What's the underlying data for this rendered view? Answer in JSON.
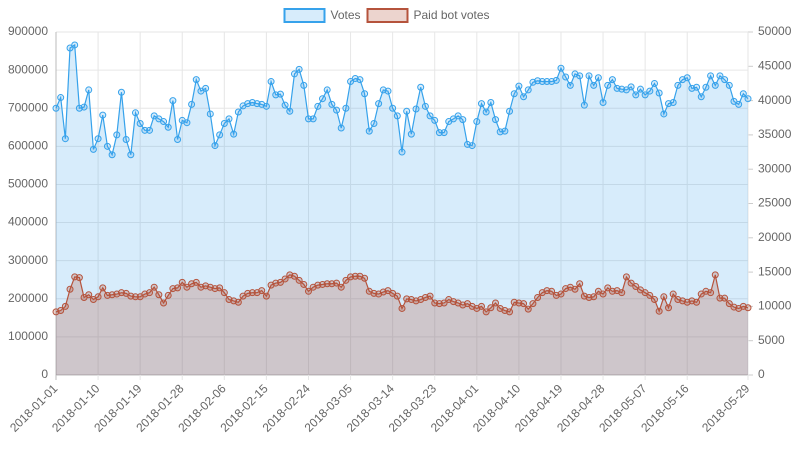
{
  "chart_data": {
    "type": "line",
    "categories": [
      "2018-01-01",
      null,
      null,
      null,
      null,
      null,
      null,
      null,
      null,
      "2018-01-10",
      null,
      null,
      null,
      null,
      null,
      null,
      null,
      null,
      "2018-01-19",
      null,
      null,
      null,
      null,
      null,
      null,
      null,
      null,
      "2018-01-28",
      null,
      null,
      null,
      null,
      null,
      null,
      null,
      null,
      "2018-02-06",
      null,
      null,
      null,
      null,
      null,
      null,
      null,
      null,
      "2018-02-15",
      null,
      null,
      null,
      null,
      null,
      null,
      null,
      null,
      "2018-02-24",
      null,
      null,
      null,
      null,
      null,
      null,
      null,
      null,
      "2018-03-05",
      null,
      null,
      null,
      null,
      null,
      null,
      null,
      null,
      "2018-03-14",
      null,
      null,
      null,
      null,
      null,
      null,
      null,
      null,
      "2018-03-23",
      null,
      null,
      null,
      null,
      null,
      null,
      null,
      null,
      "2018-04-01",
      null,
      null,
      null,
      null,
      null,
      null,
      null,
      null,
      "2018-04-10",
      null,
      null,
      null,
      null,
      null,
      null,
      null,
      null,
      "2018-04-19",
      null,
      null,
      null,
      null,
      null,
      null,
      null,
      null,
      "2018-04-28",
      null,
      null,
      null,
      null,
      null,
      null,
      null,
      null,
      "2018-05-07",
      null,
      null,
      null,
      null,
      null,
      null,
      null,
      null,
      "2018-05-16",
      null,
      null,
      null,
      null,
      null,
      null,
      null,
      null,
      null,
      null,
      null,
      null,
      "2018-05-29"
    ],
    "series": [
      {
        "name": "Votes",
        "color": "#36a2eb",
        "fill": "rgba(54,162,235,0.2)",
        "values": [
          700000,
          728000,
          620000,
          858000,
          866000,
          700000,
          703000,
          748000,
          592000,
          620000,
          682000,
          600000,
          578000,
          630000,
          742000,
          618000,
          578000,
          688000,
          660000,
          642000,
          642000,
          680000,
          672000,
          665000,
          650000,
          720000,
          618000,
          668000,
          662000,
          710000,
          775000,
          745000,
          752000,
          685000,
          602000,
          630000,
          660000,
          672000,
          632000,
          690000,
          706000,
          712000,
          715000,
          712000,
          710000,
          705000,
          770000,
          735000,
          737000,
          708000,
          692000,
          790000,
          802000,
          760000,
          672000,
          672000,
          705000,
          725000,
          748000,
          710000,
          695000,
          648000,
          700000,
          770000,
          778000,
          775000,
          738000,
          640000,
          660000,
          712000,
          748000,
          745000,
          700000,
          680000,
          585000,
          692000,
          632000,
          698000,
          755000,
          705000,
          680000,
          668000,
          636000,
          636000,
          665000,
          672000,
          680000,
          670000,
          605000,
          602000,
          665000,
          712000,
          690000,
          715000,
          670000,
          638000,
          640000,
          692000,
          738000,
          758000,
          730000,
          748000,
          768000,
          772000,
          770000,
          770000,
          770000,
          773000,
          805000,
          782000,
          760000,
          790000,
          785000,
          708000,
          785000,
          760000,
          780000,
          715000,
          760000,
          775000,
          752000,
          750000,
          748000,
          756000,
          735000,
          750000,
          735000,
          745000,
          765000,
          740000,
          685000,
          712000,
          715000,
          760000,
          775000,
          780000,
          752000,
          755000,
          730000,
          755000,
          785000,
          760000,
          785000,
          775000,
          760000,
          718000,
          710000,
          738000,
          725000
        ]
      },
      {
        "name": "Paid bot votes",
        "color": "#b5533c",
        "fill": "rgba(181,83,60,0.25)",
        "axis": "y2",
        "values": [
          9200,
          9400,
          10000,
          12500,
          14300,
          14200,
          11300,
          11700,
          11000,
          11400,
          12700,
          11600,
          11700,
          11800,
          12000,
          11900,
          11500,
          11400,
          11400,
          11800,
          12000,
          12800,
          11700,
          10500,
          11600,
          12600,
          12700,
          13500,
          12800,
          13300,
          13500,
          12800,
          13000,
          12800,
          12600,
          12700,
          12000,
          11000,
          10800,
          10600,
          11500,
          11900,
          12000,
          12000,
          12300,
          11500,
          13100,
          13400,
          13500,
          14000,
          14600,
          14400,
          13800,
          13200,
          12200,
          12800,
          13100,
          13200,
          13300,
          13300,
          13400,
          12800,
          13800,
          14300,
          14400,
          14400,
          14100,
          12200,
          11900,
          11800,
          12100,
          12300,
          11900,
          11500,
          9700,
          11100,
          11000,
          10800,
          11000,
          11300,
          11500,
          10500,
          10400,
          10500,
          11000,
          10700,
          10500,
          10200,
          10400,
          10000,
          9700,
          10000,
          9200,
          9800,
          10500,
          9700,
          9400,
          9200,
          10600,
          10500,
          10400,
          9600,
          10400,
          11300,
          12000,
          12300,
          12200,
          11600,
          11800,
          12600,
          12800,
          12500,
          13300,
          11500,
          11300,
          11400,
          12200,
          11800,
          12700,
          12200,
          12300,
          12000,
          14300,
          13400,
          12900,
          12400,
          12000,
          11600,
          11000,
          9300,
          11400,
          9800,
          11800,
          11000,
          10800,
          10600,
          10800,
          10600,
          11800,
          12200,
          12000,
          14600,
          11200,
          11200,
          10400,
          9900,
          9700,
          10000,
          9800
        ]
      }
    ],
    "ylim": [
      0,
      900000
    ],
    "yticks": [
      0,
      100000,
      200000,
      300000,
      400000,
      500000,
      600000,
      700000,
      800000,
      900000
    ],
    "y2lim": [
      0,
      50000
    ],
    "y2ticks": [
      0,
      5000,
      10000,
      15000,
      20000,
      25000,
      30000,
      35000,
      40000,
      45000,
      50000
    ],
    "grid": true,
    "legend": "top"
  }
}
